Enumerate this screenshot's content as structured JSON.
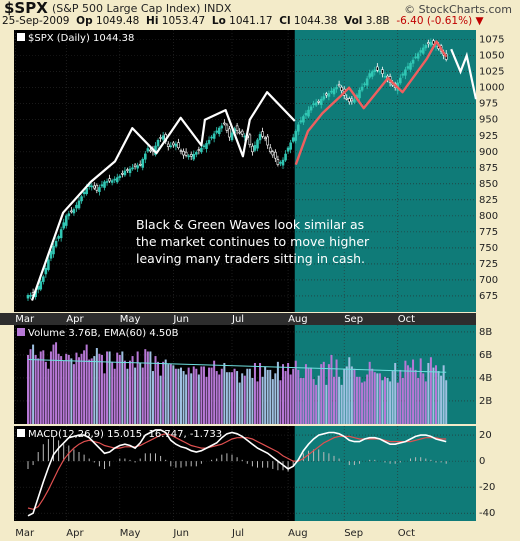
{
  "header": {
    "symbol": "$SPX",
    "name": "(S&P 500 Large Cap Index)",
    "exchange": "INDX",
    "date": "25-Sep-2009",
    "op_label": "Op",
    "op": "1049.48",
    "hi_label": "Hi",
    "hi": "1053.47",
    "lo_label": "Lo",
    "lo": "1041.17",
    "cl_label": "Cl",
    "cl": "1044.38",
    "vol_label": "Vol",
    "vol": "3.8B",
    "chg": "-6.40 (-0.61%)",
    "logo": "© StockCharts.com"
  },
  "colors": {
    "background": "#f3ebc9",
    "panel": "#000000",
    "highlight": "#0f7b78",
    "up": "#31c7b4",
    "down": "#ffffff",
    "wave_white": "#ffffff",
    "wave_red": "#ef5f5f",
    "vol_up": "#b778d6",
    "vol_down": "#9fc1e2",
    "macd": "#ffffff",
    "signal": "#e05050"
  },
  "chart_data": [
    {
      "type": "line",
      "title": "$SPX (Daily) 1044.38",
      "subtype": "candlestick",
      "x_labels": [
        "Mar",
        "Apr",
        "May",
        "Jun",
        "Jul",
        "Aug",
        "Sep",
        "Oct"
      ],
      "ylim": [
        650,
        1090
      ],
      "yticks": [
        675,
        700,
        725,
        750,
        775,
        800,
        825,
        850,
        875,
        900,
        925,
        950,
        975,
        1000,
        1025,
        1050,
        1075
      ],
      "anchors": [
        [
          0,
          676
        ],
        [
          2,
          676
        ],
        [
          4,
          690
        ],
        [
          6,
          705
        ],
        [
          9,
          745
        ],
        [
          12,
          768
        ],
        [
          15,
          800
        ],
        [
          18,
          810
        ],
        [
          21,
          830
        ],
        [
          24,
          850
        ],
        [
          27,
          840
        ],
        [
          30,
          853
        ],
        [
          33,
          855
        ],
        [
          36,
          862
        ],
        [
          38,
          870
        ],
        [
          41,
          875
        ],
        [
          44,
          880
        ],
        [
          47,
          905
        ],
        [
          49,
          900
        ],
        [
          51,
          918
        ],
        [
          53,
          925
        ],
        [
          55,
          908
        ],
        [
          58,
          912
        ],
        [
          61,
          895
        ],
        [
          64,
          893
        ],
        [
          67,
          902
        ],
        [
          70,
          913
        ],
        [
          73,
          928
        ],
        [
          75,
          937
        ],
        [
          77,
          944
        ],
        [
          79,
          923
        ],
        [
          81,
          936
        ],
        [
          83,
          930
        ],
        [
          86,
          922
        ],
        [
          88,
          900
        ],
        [
          89,
          910
        ],
        [
          91,
          927
        ],
        [
          93,
          921
        ],
        [
          95,
          900
        ],
        [
          97,
          890
        ],
        [
          98,
          880
        ],
        [
          100,
          887
        ],
        [
          102,
          906
        ],
        [
          104,
          922
        ],
        [
          106,
          942
        ],
        [
          108,
          955
        ],
        [
          110,
          965
        ],
        [
          112,
          975
        ],
        [
          114,
          978
        ],
        [
          116,
          986
        ],
        [
          118,
          991
        ],
        [
          120,
          998
        ],
        [
          122,
          1003
        ],
        [
          124,
          988
        ],
        [
          126,
          978
        ],
        [
          128,
          981
        ],
        [
          130,
          996
        ],
        [
          132,
          1006
        ],
        [
          134,
          1022
        ],
        [
          136,
          1028
        ],
        [
          138,
          1026
        ],
        [
          140,
          1018
        ],
        [
          142,
          1008
        ],
        [
          144,
          1000
        ],
        [
          146,
          1015
        ],
        [
          148,
          1028
        ],
        [
          150,
          1038
        ],
        [
          152,
          1048
        ],
        [
          154,
          1058
        ],
        [
          156,
          1066
        ],
        [
          158,
          1071
        ],
        [
          160,
          1065
        ],
        [
          162,
          1057
        ],
        [
          164,
          1044
        ]
      ],
      "white_waves": [
        [
          0,
          668
        ],
        [
          9,
          805
        ],
        [
          17,
          853
        ],
        [
          24,
          885
        ],
        [
          29,
          937
        ],
        [
          36,
          898
        ],
        [
          43,
          953
        ],
        [
          49,
          910
        ],
        [
          50,
          950
        ],
        [
          56,
          965
        ],
        [
          61,
          893
        ],
        [
          63,
          950
        ],
        [
          68,
          993
        ],
        [
          76,
          948
        ]
      ],
      "white_waves_x_extent": [
        5,
        178
      ],
      "red_waves": [
        [
          0,
          880
        ],
        [
          5,
          932
        ],
        [
          11,
          960
        ],
        [
          18,
          985
        ],
        [
          22,
          1000
        ],
        [
          28,
          968
        ],
        [
          38,
          1015
        ],
        [
          44,
          993
        ],
        [
          54,
          1045
        ],
        [
          58,
          1072
        ],
        [
          62,
          1048
        ]
      ],
      "projection": [
        [
          0,
          1060
        ],
        [
          3,
          1025
        ],
        [
          5,
          1050
        ],
        [
          8,
          982
        ]
      ],
      "highlight_from_index": 105,
      "annotation": [
        "Black & Green Waves look similar as",
        "the market continues to move higher",
        "leaving many traders sitting in cash."
      ]
    },
    {
      "type": "bar",
      "title": "Volume 3.76B, EMA(60) 4.50B",
      "ylim": [
        0,
        8.6
      ],
      "yticks": [
        "2B",
        "4B",
        "6B",
        "8B"
      ],
      "values": [
        6.0,
        6.5,
        6.9,
        6.0,
        5.7,
        6.3,
        6.4,
        5.4,
        4.8,
        6.3,
        6.9,
        7.1,
        6.1,
        5.9,
        5.5,
        6.1,
        6.0,
        5.7,
        5.2,
        6.2,
        5.8,
        6.1,
        6.4,
        6.9,
        5.6,
        5.7,
        5.9,
        6.6,
        6.1,
        6.0,
        4.4,
        6.3,
        6.3,
        5.4,
        4.8,
        6.2,
        6.0,
        6.3,
        5.5,
        4.8,
        5.5,
        5.9,
        4.9,
        6.3,
        5.3,
        4.9,
        6.5,
        6.3,
        6.3,
        4.6,
        5.9,
        5.4,
        4.2,
        5.4,
        5.6,
        5.2,
        5.2,
        5.1,
        4.8,
        4.8,
        4.9,
        4.6,
        4.3,
        4.9,
        4.4,
        5.0,
        4.8,
        4.3,
        5.0,
        5.0,
        4.1,
        4.9,
        4.9,
        5.5,
        4.6,
        4.3,
        4.8,
        5.3,
        4.5,
        4.5,
        4.5,
        4.8,
        4.6,
        3.6,
        4.4,
        4.2,
        4.8,
        4.8,
        4.0,
        5.3,
        3.7,
        5.3,
        4.1,
        5.0,
        4.7,
        4.7,
        3.9,
        4.4,
        5.4,
        3.8,
        5.2,
        4.6,
        5.3,
        4.3,
        4.8,
        5.5,
        4.7,
        4.0,
        4.0,
        5.2,
        4.9,
        4.9,
        3.9,
        3.4,
        4.2,
        5.2,
        5.4,
        3.4,
        5.2,
        6.0,
        4.1,
        5.6,
        4.1,
        3.4,
        4.8,
        5.0,
        5.8,
        5.0,
        4.8,
        4.1,
        4.1,
        3.6,
        3.7,
        4.3,
        5.4,
        4.8,
        4.5,
        4.4,
        4.4,
        3.8,
        4.1,
        4.0,
        3.7,
        4.6,
        5.3,
        3.6,
        4.7,
        4.0,
        5.5,
        5.1,
        4.9,
        5.6,
        4.7,
        4.0,
        5.7,
        4.4,
        3.7,
        5.3,
        5.8,
        4.9,
        5.1,
        4.6,
        4.2,
        5.1,
        3.8
      ],
      "ema": [
        5.6,
        4.5
      ]
    },
    {
      "type": "line",
      "title": "MACD(12,26,9) 15.015, 16.747, -1.733",
      "ylim": [
        -46,
        27
      ],
      "yticks": [
        20,
        0,
        -20,
        -40
      ],
      "macd": [
        [
          0,
          -42
        ],
        [
          2,
          -40
        ],
        [
          4,
          -28
        ],
        [
          6,
          -16
        ],
        [
          8,
          -5
        ],
        [
          10,
          5
        ],
        [
          12,
          10
        ],
        [
          14,
          14
        ],
        [
          16,
          18
        ],
        [
          18,
          19
        ],
        [
          20,
          20
        ],
        [
          22,
          20
        ],
        [
          24,
          18
        ],
        [
          26,
          14
        ],
        [
          28,
          10
        ],
        [
          30,
          6
        ],
        [
          32,
          7
        ],
        [
          34,
          10
        ],
        [
          36,
          12
        ],
        [
          38,
          13
        ],
        [
          40,
          12
        ],
        [
          42,
          10
        ],
        [
          44,
          14
        ],
        [
          46,
          20
        ],
        [
          48,
          22
        ],
        [
          50,
          24
        ],
        [
          52,
          24
        ],
        [
          54,
          22
        ],
        [
          56,
          16
        ],
        [
          58,
          13
        ],
        [
          60,
          11
        ],
        [
          62,
          10
        ],
        [
          64,
          8
        ],
        [
          66,
          7
        ],
        [
          68,
          8
        ],
        [
          70,
          10
        ],
        [
          72,
          12
        ],
        [
          74,
          14
        ],
        [
          76,
          18
        ],
        [
          78,
          21
        ],
        [
          80,
          22
        ],
        [
          82,
          21
        ],
        [
          84,
          19
        ],
        [
          86,
          16
        ],
        [
          88,
          13
        ],
        [
          90,
          10
        ],
        [
          92,
          8
        ],
        [
          94,
          6
        ],
        [
          96,
          3
        ],
        [
          98,
          0
        ],
        [
          100,
          -3
        ],
        [
          102,
          -6
        ],
        [
          104,
          -4
        ],
        [
          106,
          1
        ],
        [
          108,
          8
        ],
        [
          110,
          13
        ],
        [
          112,
          17
        ],
        [
          114,
          20
        ],
        [
          116,
          21
        ],
        [
          118,
          22
        ],
        [
          120,
          22
        ],
        [
          122,
          21
        ],
        [
          124,
          19
        ],
        [
          126,
          16
        ],
        [
          128,
          15
        ],
        [
          130,
          15
        ],
        [
          132,
          17
        ],
        [
          134,
          18
        ],
        [
          136,
          18
        ],
        [
          138,
          17
        ],
        [
          140,
          15
        ],
        [
          142,
          13
        ],
        [
          144,
          13
        ],
        [
          146,
          14
        ],
        [
          148,
          15
        ],
        [
          150,
          17
        ],
        [
          152,
          19
        ],
        [
          154,
          20
        ],
        [
          156,
          20
        ],
        [
          158,
          19
        ],
        [
          160,
          17
        ],
        [
          162,
          16
        ],
        [
          164,
          15
        ]
      ],
      "signal": [
        [
          0,
          -36
        ],
        [
          2,
          -37
        ],
        [
          4,
          -35
        ],
        [
          6,
          -29
        ],
        [
          8,
          -22
        ],
        [
          10,
          -14
        ],
        [
          12,
          -6
        ],
        [
          14,
          1
        ],
        [
          16,
          6
        ],
        [
          18,
          10
        ],
        [
          20,
          13
        ],
        [
          22,
          15
        ],
        [
          24,
          16
        ],
        [
          26,
          15
        ],
        [
          28,
          14
        ],
        [
          30,
          12
        ],
        [
          32,
          11
        ],
        [
          34,
          10
        ],
        [
          36,
          10
        ],
        [
          38,
          11
        ],
        [
          40,
          11
        ],
        [
          42,
          11
        ],
        [
          44,
          12
        ],
        [
          46,
          14
        ],
        [
          48,
          16
        ],
        [
          50,
          18
        ],
        [
          52,
          20
        ],
        [
          54,
          21
        ],
        [
          56,
          20
        ],
        [
          58,
          18
        ],
        [
          60,
          16
        ],
        [
          62,
          14
        ],
        [
          64,
          12
        ],
        [
          66,
          11
        ],
        [
          68,
          10
        ],
        [
          70,
          10
        ],
        [
          72,
          11
        ],
        [
          74,
          12
        ],
        [
          76,
          13
        ],
        [
          78,
          15
        ],
        [
          80,
          17
        ],
        [
          82,
          18
        ],
        [
          84,
          18
        ],
        [
          86,
          18
        ],
        [
          88,
          17
        ],
        [
          90,
          15
        ],
        [
          92,
          13
        ],
        [
          94,
          11
        ],
        [
          96,
          9
        ],
        [
          98,
          7
        ],
        [
          100,
          4
        ],
        [
          102,
          2
        ],
        [
          104,
          0
        ],
        [
          106,
          0
        ],
        [
          108,
          2
        ],
        [
          110,
          5
        ],
        [
          112,
          8
        ],
        [
          114,
          11
        ],
        [
          116,
          14
        ],
        [
          118,
          16
        ],
        [
          120,
          18
        ],
        [
          122,
          19
        ],
        [
          124,
          19
        ],
        [
          126,
          19
        ],
        [
          128,
          18
        ],
        [
          130,
          17
        ],
        [
          132,
          17
        ],
        [
          134,
          17
        ],
        [
          136,
          17
        ],
        [
          138,
          17
        ],
        [
          140,
          16
        ],
        [
          142,
          15
        ],
        [
          144,
          15
        ],
        [
          146,
          15
        ],
        [
          148,
          15
        ],
        [
          150,
          15
        ],
        [
          152,
          16
        ],
        [
          154,
          17
        ],
        [
          156,
          18
        ],
        [
          158,
          18
        ],
        [
          160,
          18
        ],
        [
          162,
          17
        ],
        [
          164,
          17
        ]
      ]
    }
  ]
}
